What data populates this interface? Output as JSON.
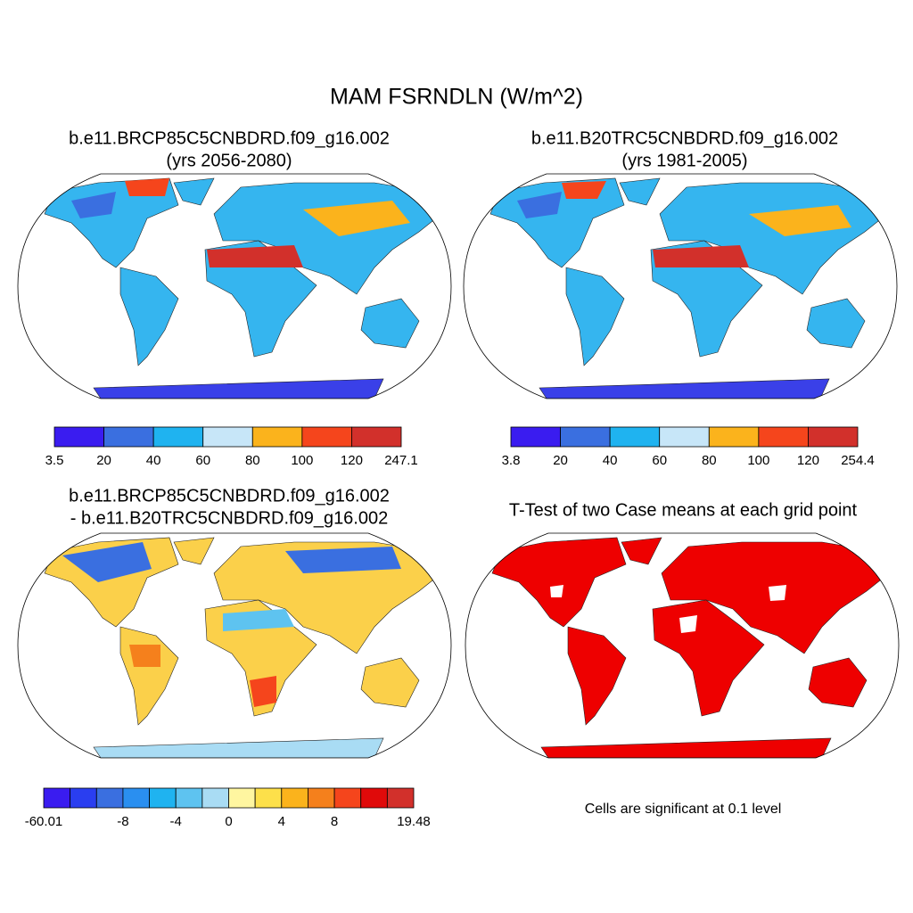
{
  "title": "MAM FSRNDLN (W/m^2)",
  "panels": [
    {
      "title": [
        "b.e11.BRCP85C5CNBDRD.f09_g16.002",
        "(yrs 2056-2080)"
      ],
      "colorbar": {
        "colors": [
          "#3a1cf0",
          "#3a6fe0",
          "#1fb3f0",
          "#c7e6f8",
          "#fbb31c",
          "#f5451c",
          "#d2302b"
        ],
        "labels": [
          "3.5",
          "20",
          "40",
          "60",
          "80",
          "100",
          "120",
          "247.1"
        ]
      }
    },
    {
      "title": [
        "b.e11.B20TRC5CNBDRD.f09_g16.002",
        "(yrs 1981-2005)"
      ],
      "colorbar": {
        "colors": [
          "#3a1cf0",
          "#3a6fe0",
          "#1fb3f0",
          "#c7e6f8",
          "#fbb31c",
          "#f5451c",
          "#d2302b"
        ],
        "labels": [
          "3.8",
          "20",
          "40",
          "60",
          "80",
          "100",
          "120",
          "254.4"
        ]
      }
    },
    {
      "title": [
        "b.e11.BRCP85C5CNBDRD.f09_g16.002",
        "- b.e11.B20TRC5CNBDRD.f09_g16.002"
      ],
      "colorbar": {
        "colors": [
          "#3a1cf0",
          "#2a3ef0",
          "#3a6fe0",
          "#2a8ff0",
          "#1fb3f0",
          "#5ec3f0",
          "#a9dcf4",
          "#fff6a0",
          "#fde04a",
          "#fbb31c",
          "#f5801c",
          "#f5451c",
          "#e00a0a",
          "#d2302b"
        ],
        "labels": [
          "-60.01",
          null,
          null,
          "-8",
          null,
          "-4",
          null,
          "0",
          null,
          "4",
          null,
          "8",
          null,
          null,
          "19.48"
        ]
      }
    },
    {
      "title": [
        "T-Test of two Case means at each grid point"
      ],
      "note": "Cells are significant at 0.1 level"
    }
  ]
}
